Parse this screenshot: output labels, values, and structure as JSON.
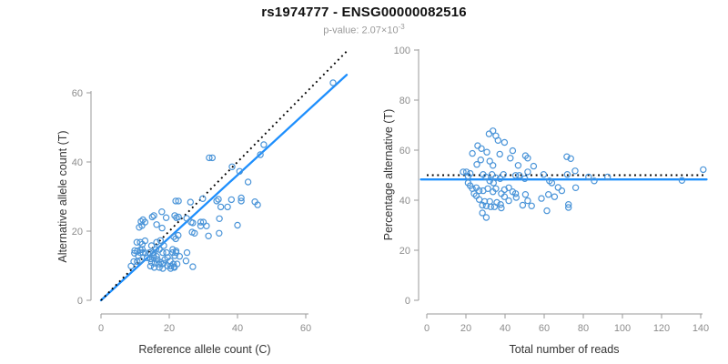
{
  "title": "rs1974777 - ENSG00000082516",
  "subtitle": {
    "base": "p-value: 2.07×10",
    "exponent": "-3"
  },
  "colors": {
    "point": "#4a94d8",
    "fit_line": "#1e8ffd",
    "reference_line": "#000000",
    "axis": "#9a9a9a",
    "tick_label": "#8c8c8c",
    "axis_title": "#333333",
    "title": "#111111",
    "subtitle": "#9a9a9a"
  },
  "chart_data": [
    {
      "type": "scatter",
      "name": "allele-counts-scatter",
      "xlabel": "Reference allele count (C)",
      "ylabel": "Alternative allele count (T)",
      "xticks": [
        0,
        20,
        40,
        60
      ],
      "yticks": [
        0,
        20,
        40,
        60
      ],
      "xlim": [
        0,
        72
      ],
      "ylim": [
        0,
        72
      ],
      "grid": false,
      "lines": [
        {
          "name": "fit-line",
          "style": "solid",
          "from": [
            0,
            0
          ],
          "to": [
            72,
            65.2
          ]
        },
        {
          "name": "identity-line",
          "style": "dotted",
          "from": [
            0,
            0
          ],
          "to": [
            72,
            72
          ]
        }
      ],
      "points": [
        [
          8.8,
          9.9
        ],
        [
          9.6,
          11.2
        ],
        [
          10.6,
          11.2
        ],
        [
          11.5,
          11.5
        ],
        [
          10.9,
          12.9
        ],
        [
          11.5,
          13.8
        ],
        [
          12.3,
          13.8
        ],
        [
          13.0,
          13.7
        ],
        [
          13.5,
          12.3
        ],
        [
          14.5,
          12.0
        ],
        [
          15.5,
          12.3
        ],
        [
          16.5,
          11.8
        ],
        [
          17.4,
          11.0
        ],
        [
          18.4,
          10.7
        ],
        [
          19.4,
          10.0
        ],
        [
          20.4,
          9.9
        ],
        [
          21.4,
          9.7
        ],
        [
          9.8,
          13.6
        ],
        [
          9.9,
          14.4
        ],
        [
          10.6,
          14.2
        ],
        [
          11.5,
          14.6
        ],
        [
          12.1,
          14.7
        ],
        [
          14.2,
          13.8
        ],
        [
          15.3,
          13.0
        ],
        [
          16.3,
          12.7
        ],
        [
          14.8,
          11.0
        ],
        [
          15.8,
          10.7
        ],
        [
          14.5,
          9.9
        ],
        [
          15.6,
          9.5
        ],
        [
          16.9,
          10.5
        ],
        [
          17.9,
          10.5
        ],
        [
          17.1,
          9.5
        ],
        [
          18.1,
          9.2
        ],
        [
          20.4,
          9.2
        ],
        [
          21.5,
          9.5
        ],
        [
          21.2,
          10.5
        ],
        [
          22.3,
          10.5
        ],
        [
          18.7,
          11.8
        ],
        [
          19.5,
          12.4
        ],
        [
          20.3,
          11.4
        ],
        [
          21.6,
          12.9
        ],
        [
          23.0,
          12.7
        ],
        [
          24.9,
          11.4
        ],
        [
          26.9,
          9.7
        ],
        [
          25.2,
          13.8
        ],
        [
          21.0,
          13.8
        ],
        [
          22.0,
          13.8
        ],
        [
          21.0,
          14.7
        ],
        [
          22.0,
          14.3
        ],
        [
          18.1,
          13.8
        ],
        [
          19.2,
          13.8
        ],
        [
          15.3,
          13.8
        ],
        [
          16.1,
          14.7
        ],
        [
          17.1,
          14.7
        ],
        [
          14.8,
          15.8
        ],
        [
          16.3,
          16.8
        ],
        [
          17.4,
          17.3
        ],
        [
          18.4,
          15.8
        ],
        [
          10.5,
          16.8
        ],
        [
          11.5,
          16.8
        ],
        [
          12.1,
          16.2
        ],
        [
          12.9,
          17.2
        ],
        [
          21.3,
          18.4
        ],
        [
          21.9,
          17.8
        ],
        [
          22.6,
          18.8
        ],
        [
          26.7,
          19.7
        ],
        [
          27.4,
          19.4
        ],
        [
          31.5,
          18.6
        ],
        [
          34.6,
          19.4
        ],
        [
          11.2,
          21.1
        ],
        [
          12.0,
          21.6
        ],
        [
          11.7,
          22.8
        ],
        [
          12.3,
          23.3
        ],
        [
          12.9,
          22.6
        ],
        [
          15.0,
          24.1
        ],
        [
          15.5,
          24.5
        ],
        [
          16.3,
          21.9
        ],
        [
          17.9,
          20.9
        ],
        [
          17.8,
          25.6
        ],
        [
          19.1,
          23.9
        ],
        [
          21.6,
          24.5
        ],
        [
          22.1,
          23.9
        ],
        [
          22.7,
          24.1
        ],
        [
          25.1,
          23.7
        ],
        [
          26.4,
          22.6
        ],
        [
          26.9,
          22.4
        ],
        [
          29.2,
          22.6
        ],
        [
          30.0,
          22.6
        ],
        [
          29.2,
          21.5
        ],
        [
          30.9,
          21.5
        ],
        [
          34.7,
          23.6
        ],
        [
          40.0,
          21.7
        ],
        [
          21.9,
          28.7
        ],
        [
          22.7,
          28.7
        ],
        [
          26.2,
          28.4
        ],
        [
          29.8,
          29.4
        ],
        [
          33.9,
          28.7
        ],
        [
          34.4,
          29.2
        ],
        [
          38.2,
          29.1
        ],
        [
          41.1,
          29.6
        ],
        [
          41.1,
          28.7
        ],
        [
          35.1,
          27.0
        ],
        [
          37.1,
          27.0
        ],
        [
          45.1,
          28.5
        ],
        [
          45.9,
          27.6
        ],
        [
          31.7,
          41.2
        ],
        [
          32.6,
          41.2
        ],
        [
          38.4,
          38.6
        ],
        [
          40.6,
          37.3
        ],
        [
          43.1,
          34.2
        ],
        [
          47.7,
          45.0
        ],
        [
          46.7,
          42.1
        ],
        [
          68.0,
          62.9
        ]
      ]
    },
    {
      "type": "scatter",
      "name": "percentage-vs-reads-scatter",
      "xlabel": "Total number of reads",
      "ylabel": "Percentage alternative (T)",
      "xticks": [
        0,
        20,
        40,
        60,
        80,
        100,
        120,
        140
      ],
      "yticks": [
        0,
        20,
        40,
        60,
        80,
        100
      ],
      "xlim": [
        0,
        143
      ],
      "ylim": [
        0,
        100
      ],
      "grid": false,
      "lines": [
        {
          "name": "fit-line",
          "style": "solid",
          "from": [
            -3,
            48.3
          ],
          "to": [
            143,
            48.3
          ]
        },
        {
          "name": "expected-50pct-line",
          "style": "dotted",
          "from": [
            0,
            50
          ],
          "to": [
            143,
            50
          ]
        }
      ],
      "points": [
        [
          18.6,
          51.3
        ],
        [
          20.3,
          51.3
        ],
        [
          22.2,
          50.7
        ],
        [
          21.1,
          49.6
        ],
        [
          21.1,
          46.9
        ],
        [
          22.2,
          45.8
        ],
        [
          23.3,
          44.6
        ],
        [
          25.3,
          45.0
        ],
        [
          23.3,
          58.7
        ],
        [
          26.0,
          61.8
        ],
        [
          27.9,
          60.6
        ],
        [
          30.7,
          59.2
        ],
        [
          31.8,
          66.5
        ],
        [
          33.8,
          67.7
        ],
        [
          35.3,
          65.7
        ],
        [
          36.4,
          63.9
        ],
        [
          39.7,
          63.1
        ],
        [
          43.9,
          59.8
        ],
        [
          37.3,
          58.4
        ],
        [
          50.4,
          57.8
        ],
        [
          51.6,
          56.8
        ],
        [
          25.6,
          54.3
        ],
        [
          27.6,
          56.1
        ],
        [
          32.2,
          55.6
        ],
        [
          33.8,
          53.9
        ],
        [
          42.7,
          56.8
        ],
        [
          46.7,
          53.9
        ],
        [
          54.6,
          53.6
        ],
        [
          71.6,
          57.4
        ],
        [
          73.6,
          56.6
        ],
        [
          28.8,
          50.3
        ],
        [
          30.2,
          49.3
        ],
        [
          33.3,
          50.3
        ],
        [
          35.3,
          49.0
        ],
        [
          37.5,
          48.6
        ],
        [
          32.2,
          47.7
        ],
        [
          34.1,
          46.9
        ],
        [
          39.2,
          50.3
        ],
        [
          45.4,
          49.9
        ],
        [
          47.3,
          49.9
        ],
        [
          50.1,
          48.6
        ],
        [
          51.6,
          51.3
        ],
        [
          59.7,
          50.3
        ],
        [
          62.7,
          47.7
        ],
        [
          63.9,
          46.9
        ],
        [
          71.8,
          50.3
        ],
        [
          75.8,
          51.7
        ],
        [
          82.7,
          49.3
        ],
        [
          85.6,
          47.7
        ],
        [
          92.4,
          49.3
        ],
        [
          26.8,
          43.8
        ],
        [
          28.8,
          43.8
        ],
        [
          31.2,
          44.6
        ],
        [
          33.8,
          43.4
        ],
        [
          35.3,
          44.6
        ],
        [
          39.7,
          44.2
        ],
        [
          41.9,
          45.0
        ],
        [
          43.9,
          43.4
        ],
        [
          45.4,
          42.6
        ],
        [
          38.1,
          42.6
        ],
        [
          39.7,
          41.4
        ],
        [
          45.7,
          41.1
        ],
        [
          50.4,
          42.3
        ],
        [
          24.2,
          42.6
        ],
        [
          25.3,
          41.8
        ],
        [
          26.8,
          40.3
        ],
        [
          29.6,
          39.5
        ],
        [
          32.2,
          39.5
        ],
        [
          35.8,
          39.1
        ],
        [
          37.7,
          38.3
        ],
        [
          41.9,
          39.8
        ],
        [
          51.6,
          39.8
        ],
        [
          58.6,
          40.7
        ],
        [
          62.2,
          42.3
        ],
        [
          65.3,
          41.4
        ],
        [
          67.1,
          45.1
        ],
        [
          69.0,
          43.8
        ],
        [
          76.1,
          45.0
        ],
        [
          72.4,
          38.3
        ],
        [
          72.4,
          37.1
        ],
        [
          28.4,
          38.0
        ],
        [
          30.4,
          37.7
        ],
        [
          32.7,
          37.4
        ],
        [
          34.6,
          37.4
        ],
        [
          38.1,
          36.9
        ],
        [
          49.0,
          38.0
        ],
        [
          53.6,
          37.7
        ],
        [
          61.4,
          35.8
        ],
        [
          28.4,
          34.9
        ],
        [
          30.4,
          33.1
        ],
        [
          130.4,
          47.9
        ],
        [
          141.3,
          52.2
        ]
      ]
    }
  ]
}
